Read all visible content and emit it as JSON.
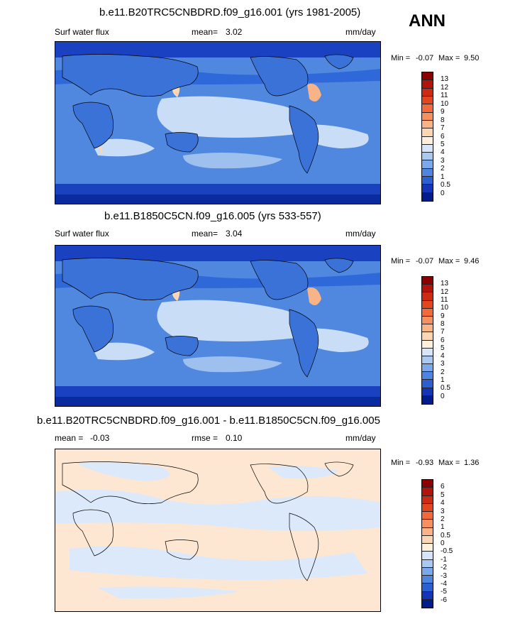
{
  "season": "ANN",
  "panels": [
    {
      "title": "b.e11.B20TRC5CNBDRD.f09_g16.001 (yrs 1981-2005)",
      "left_label": "Surf water flux",
      "mean_label": "mean=",
      "mean_value": "3.02",
      "units": "mm/day",
      "min_label": "Min =",
      "min_value": "-0.07",
      "max_label": "Max =",
      "max_value": "9.50",
      "colorbar_ticks": [
        "13",
        "12",
        "11",
        "10",
        "9",
        "8",
        "7",
        "6",
        "5",
        "4",
        "3",
        "2",
        "1",
        "0.5",
        "0"
      ],
      "colorbar_colors": [
        "#8b0000",
        "#b2140c",
        "#cc2a12",
        "#e0461f",
        "#f26a3b",
        "#f6905f",
        "#f8b487",
        "#fbd6b5",
        "#fdf0dc",
        "#d6e6fa",
        "#a9c8f2",
        "#7aa8ea",
        "#4e85e0",
        "#2b5fd2",
        "#1435b8",
        "#021c8a"
      ]
    },
    {
      "title": "b.e11.B1850C5CN.f09_g16.005 (yrs 533-557)",
      "left_label": "Surf water flux",
      "mean_label": "mean=",
      "mean_value": "3.04",
      "units": "mm/day",
      "min_label": "Min =",
      "min_value": "-0.07",
      "max_label": "Max =",
      "max_value": "9.46",
      "colorbar_ticks": [
        "13",
        "12",
        "11",
        "10",
        "9",
        "8",
        "7",
        "6",
        "5",
        "4",
        "3",
        "2",
        "1",
        "0.5",
        "0"
      ],
      "colorbar_colors": [
        "#8b0000",
        "#b2140c",
        "#cc2a12",
        "#e0461f",
        "#f26a3b",
        "#f6905f",
        "#f8b487",
        "#fbd6b5",
        "#fdf0dc",
        "#d6e6fa",
        "#a9c8f2",
        "#7aa8ea",
        "#4e85e0",
        "#2b5fd2",
        "#1435b8",
        "#021c8a"
      ]
    },
    {
      "title": "b.e11.B20TRC5CNBDRD.f09_g16.001 - b.e11.B1850C5CN.f09_g16.005",
      "left_label": "mean =",
      "left_value": "-0.03",
      "rmse_label": "rmse =",
      "rmse_value": "0.10",
      "units": "mm/day",
      "min_label": "Min =",
      "min_value": "-0.93",
      "max_label": "Max =",
      "max_value": "1.36",
      "colorbar_ticks": [
        "6",
        "5",
        "4",
        "3",
        "2",
        "1",
        "0.5",
        "0",
        "-0.5",
        "-1",
        "-2",
        "-3",
        "-4",
        "-5",
        "-6"
      ],
      "colorbar_colors": [
        "#8b0000",
        "#b2140c",
        "#cc2a12",
        "#e0461f",
        "#f26a3b",
        "#f6905f",
        "#f8b487",
        "#fbd6b5",
        "#fdf0dc",
        "#d6e6fa",
        "#a9c8f2",
        "#7aa8ea",
        "#4e85e0",
        "#2b5fd2",
        "#1435b8",
        "#021c8a"
      ]
    }
  ]
}
